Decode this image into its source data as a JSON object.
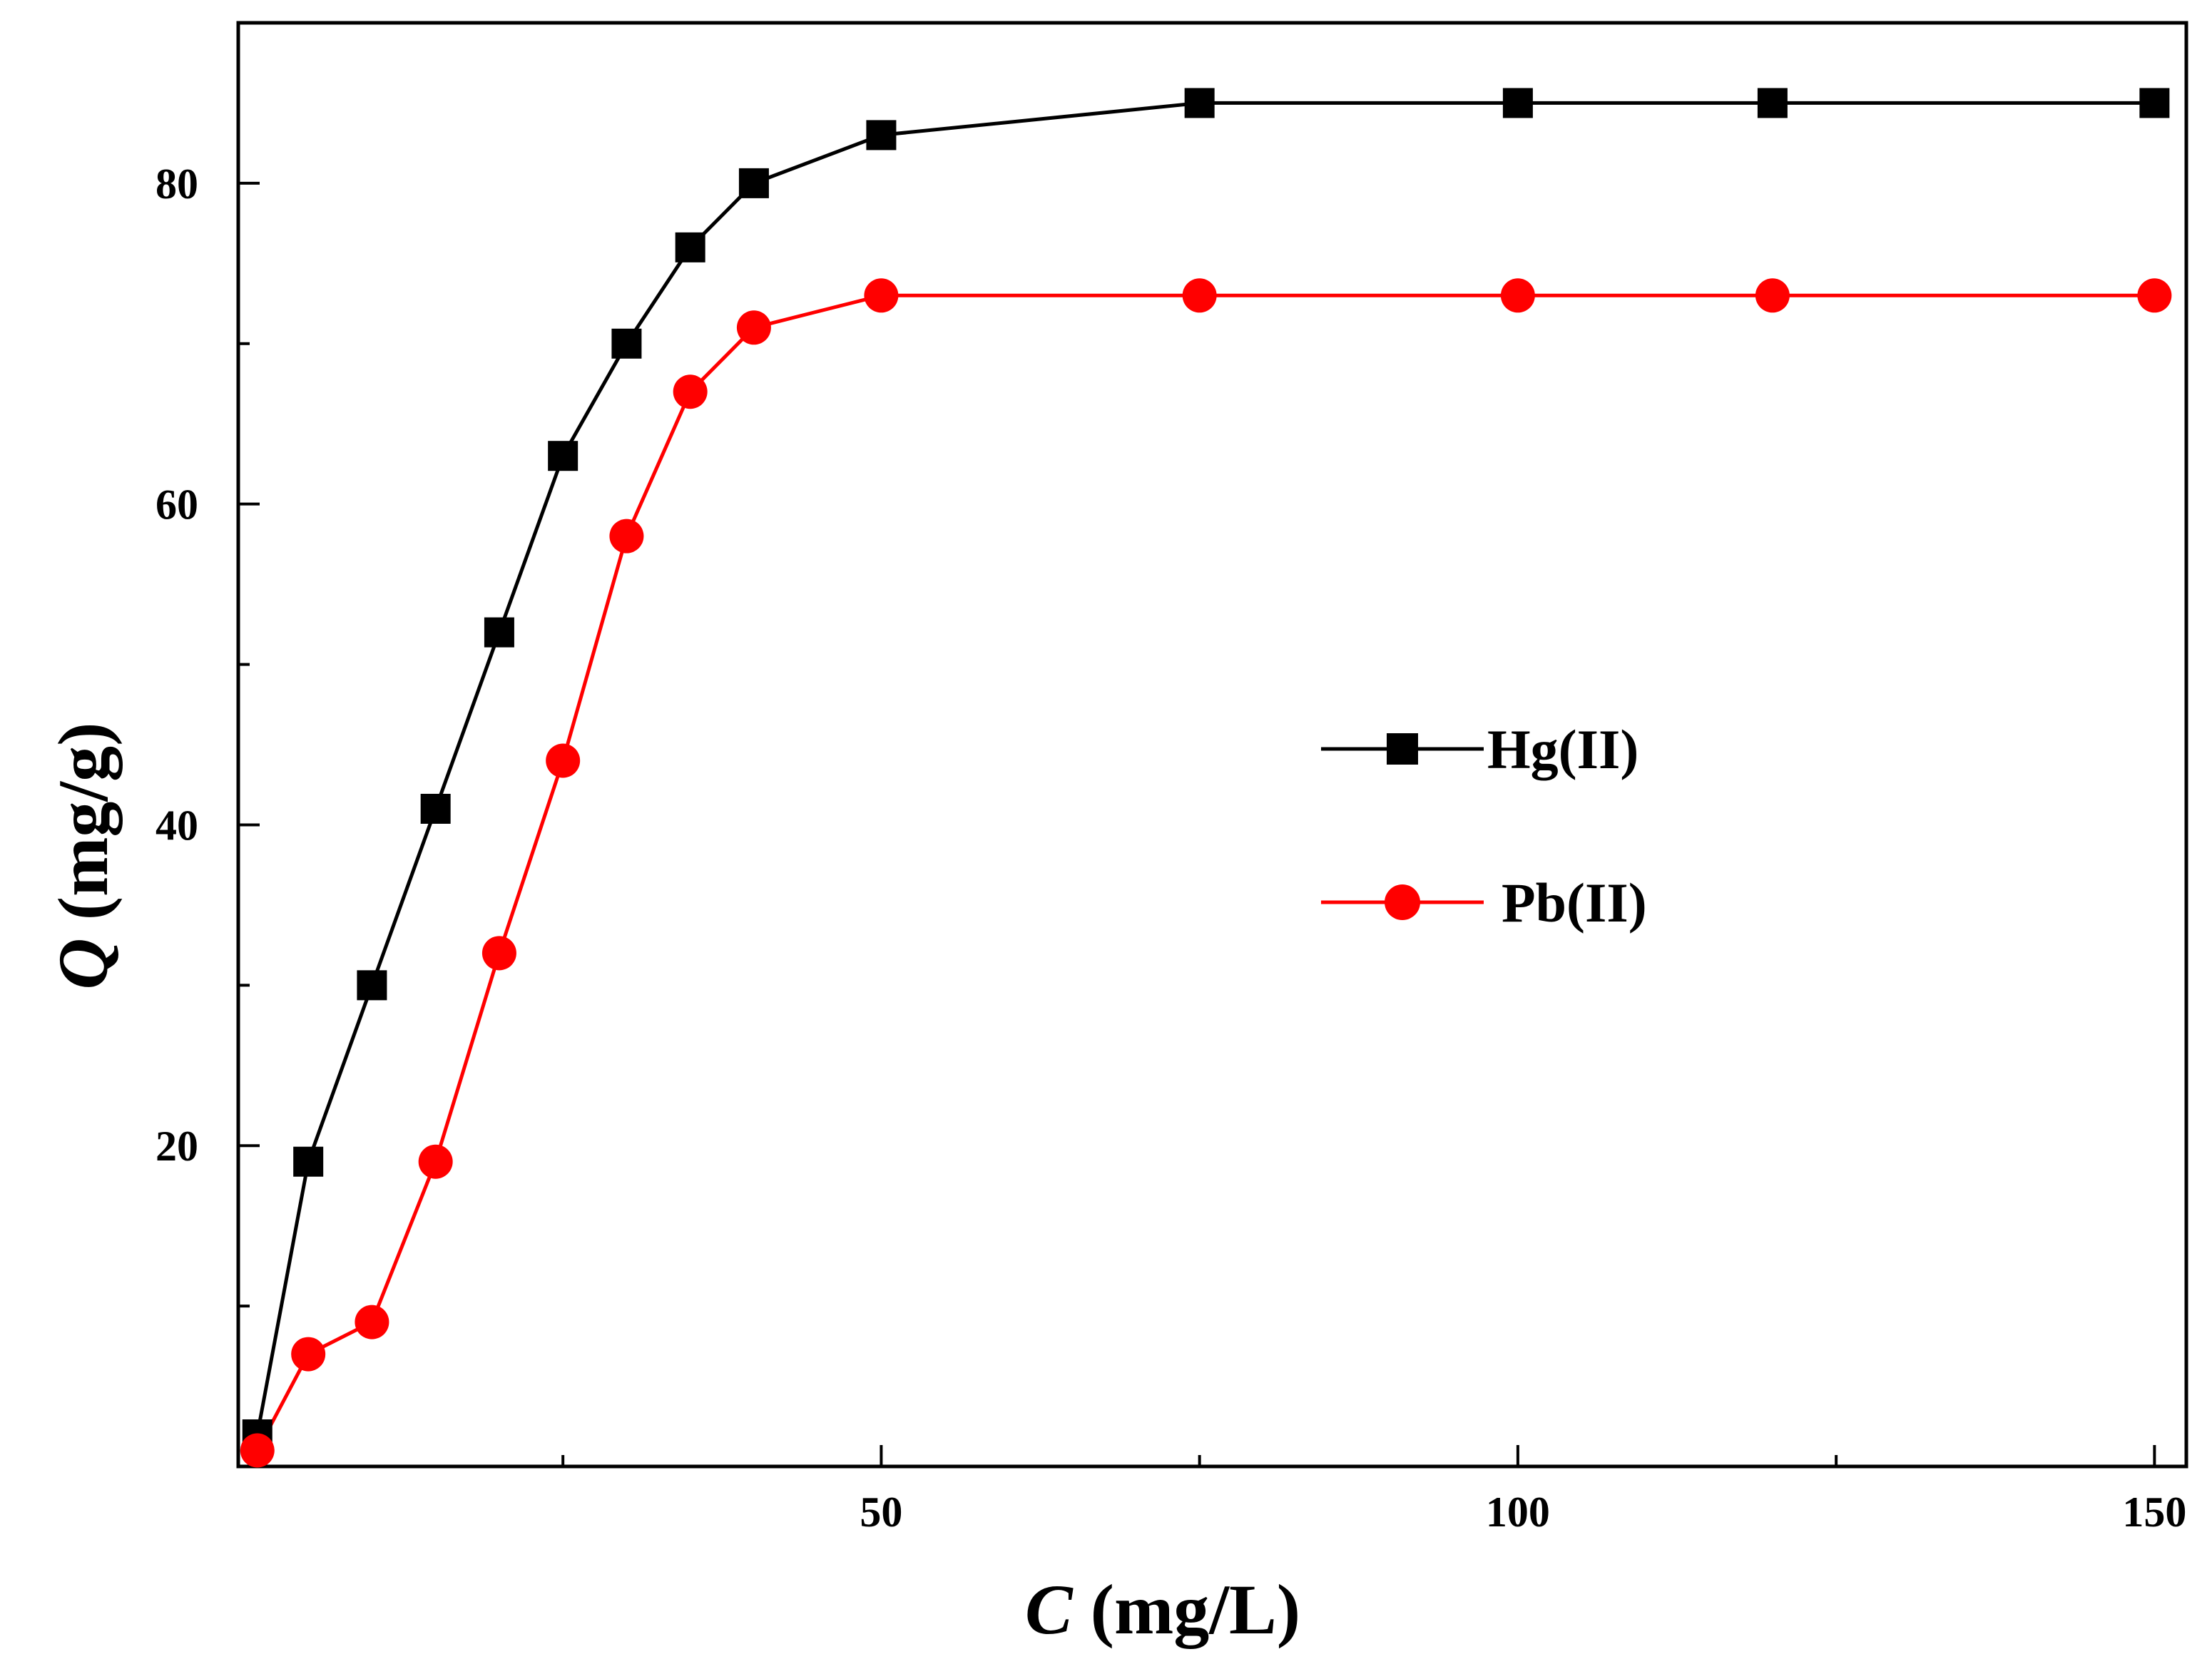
{
  "chart_data": {
    "type": "line",
    "title": "",
    "xlabel": {
      "symbol": "C",
      "unit": " (mg/L)"
    },
    "ylabel": {
      "symbol": "Q",
      "unit": " (mg/g)"
    },
    "xlim": [
      -0.5,
      152.5
    ],
    "ylim": [
      0,
      90
    ],
    "xticks_major": [
      50,
      100,
      150
    ],
    "xticks_minor": [
      25,
      75,
      125
    ],
    "yticks_major": [
      20,
      40,
      60,
      80
    ],
    "yticks_minor": [
      10,
      30,
      50,
      70
    ],
    "grid": false,
    "legend_position": "center-right",
    "series": [
      {
        "name": "Hg(II)",
        "color": "#000000",
        "marker": "square",
        "x": [
          1,
          5,
          10,
          15,
          20,
          25,
          30,
          35,
          40,
          50,
          75,
          100,
          120,
          150
        ],
        "y": [
          2,
          19,
          30,
          41,
          52,
          63,
          70,
          76,
          80,
          83,
          85,
          85,
          85,
          85
        ]
      },
      {
        "name": "Pb(II)",
        "color": "#ff0000",
        "marker": "circle",
        "x": [
          1,
          5,
          10,
          15,
          20,
          25,
          30,
          35,
          40,
          50,
          75,
          100,
          120,
          150
        ],
        "y": [
          1,
          7,
          9,
          19,
          32,
          44,
          58,
          67,
          71,
          73,
          73,
          73,
          73,
          73
        ]
      }
    ]
  }
}
